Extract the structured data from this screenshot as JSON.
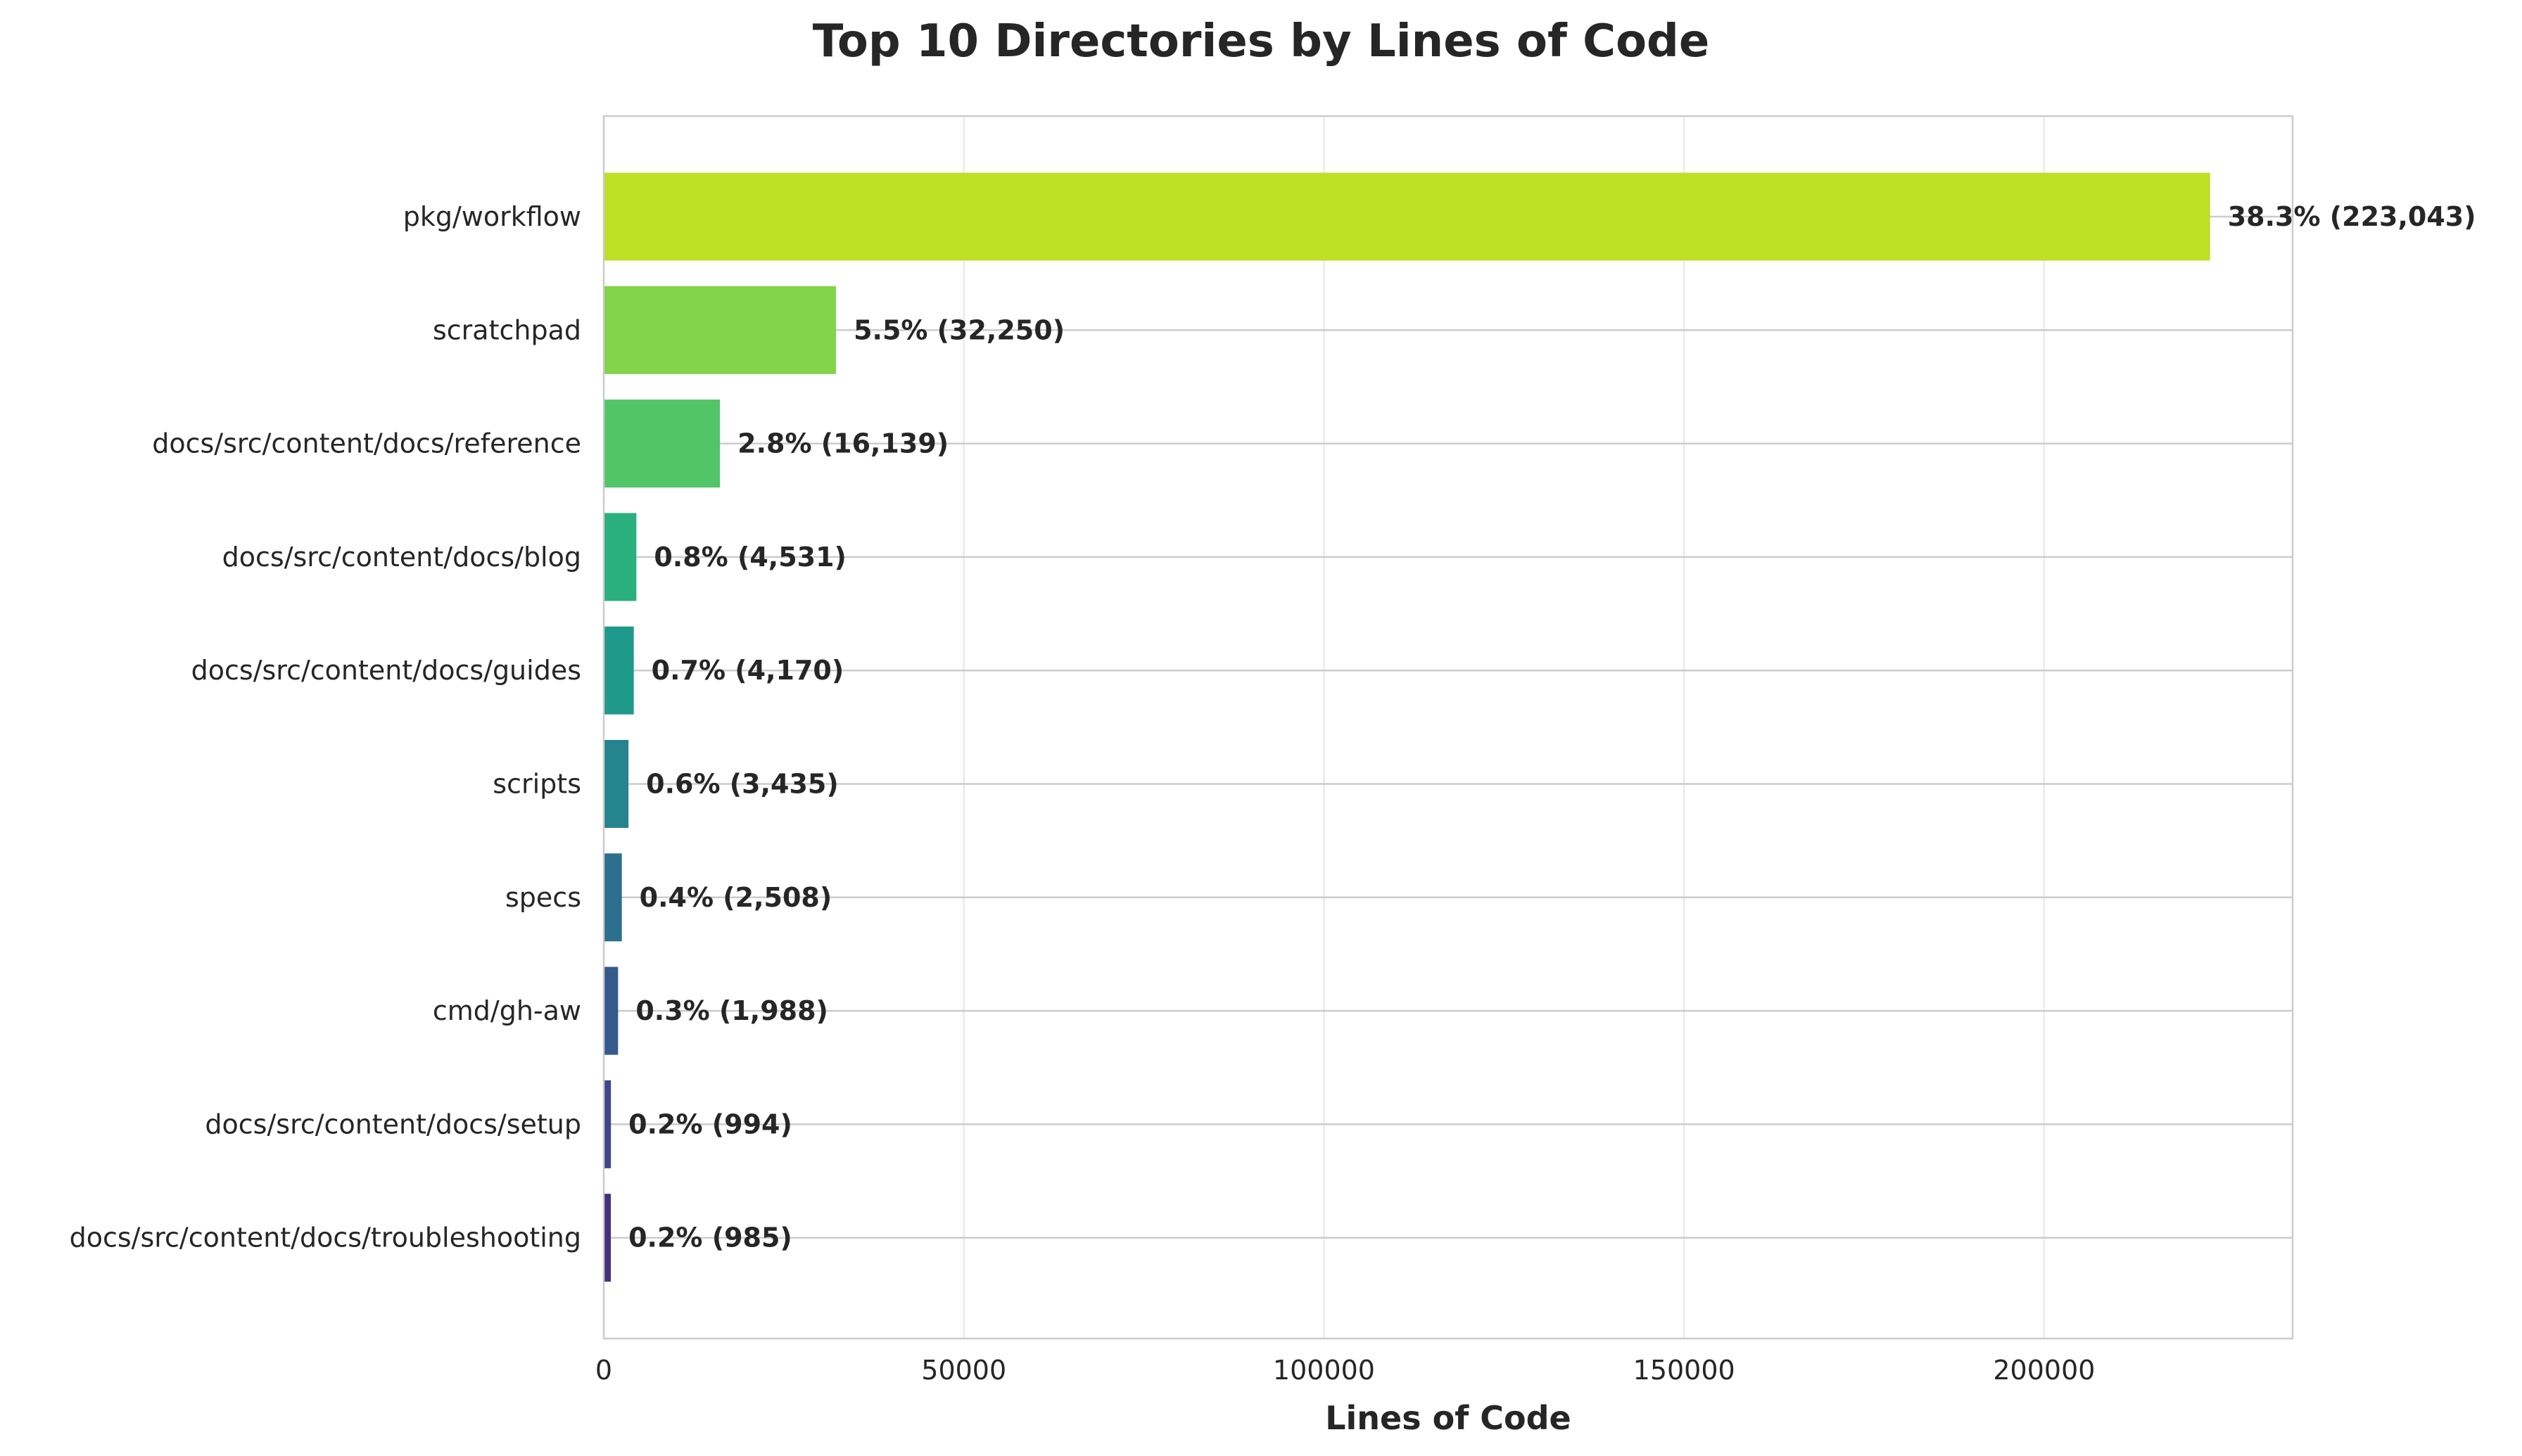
{
  "chart_data": {
    "type": "bar",
    "orientation": "horizontal",
    "title": "Top 10 Directories by Lines of Code",
    "xlabel": "Lines of Code",
    "ylabel": "",
    "xlim": [
      0,
      234500
    ],
    "xticks": [
      0,
      50000,
      100000,
      150000,
      200000
    ],
    "xtick_labels": [
      "0",
      "50000",
      "100000",
      "150000",
      "200000"
    ],
    "grid": true,
    "categories": [
      "pkg/workflow",
      "scratchpad",
      "docs/src/content/docs/reference",
      "docs/src/content/docs/blog",
      "docs/src/content/docs/guides",
      "scripts",
      "specs",
      "cmd/gh-aw",
      "docs/src/content/docs/setup",
      "docs/src/content/docs/troubleshooting"
    ],
    "values": [
      223043,
      32250,
      16139,
      4531,
      4170,
      3435,
      2508,
      1988,
      994,
      985
    ],
    "data_labels": [
      "38.3% (223,043)",
      "5.5% (32,250)",
      "2.8% (16,139)",
      "0.8% (4,531)",
      "0.7% (4,170)",
      "0.6% (3,435)",
      "0.4% (2,508)",
      "0.3% (1,988)",
      "0.2% (994)",
      "0.2% (985)"
    ],
    "colors": [
      "#bddf26",
      "#84d44b",
      "#52c569",
      "#2ab07f",
      "#1f9a8a",
      "#25848e",
      "#2c6f8e",
      "#355a8c",
      "#3f4788",
      "#46307e"
    ]
  }
}
